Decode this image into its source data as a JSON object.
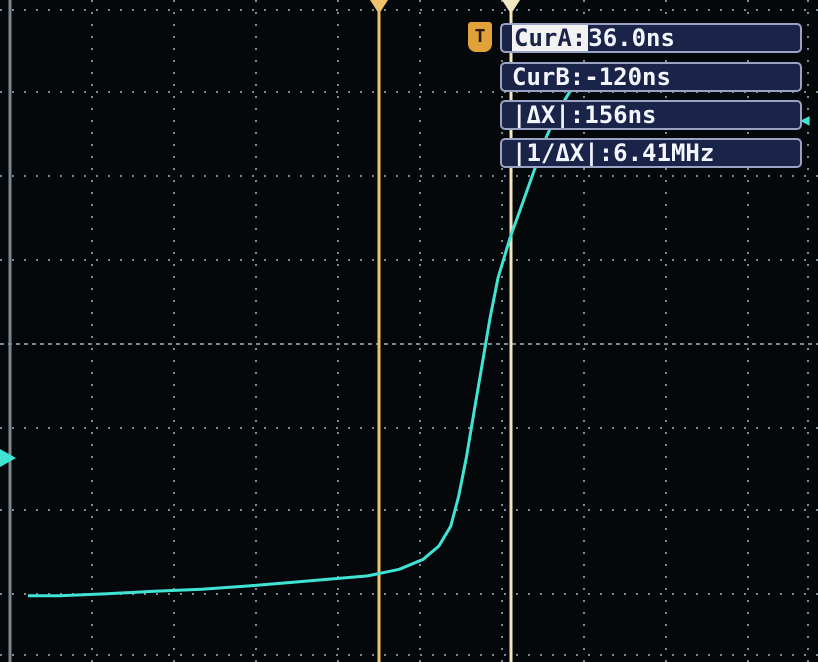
{
  "colors": {
    "screen_bg": "#05080a",
    "grid": "#7d8890",
    "trace": "#41e3d4",
    "cursor_a": "#f0c06a",
    "cursor_b": "#f2e6c0",
    "readout_bg": "#1a2348",
    "readout_border": "#9aa3c4",
    "readout_text": "#f4f6ff"
  },
  "markers": {
    "trigger_icon": "trigger-T-icon",
    "trigger_label": "T",
    "channel_marker_icon": "ch1-ground-arrow-icon",
    "trigger_level_icon": "trigger-level-arrow-icon",
    "trigger_level_glyph": "◀"
  },
  "readouts": {
    "cur_a_label": "CurA:",
    "cur_a_value": "36.0ns",
    "cur_b": "CurB:-120ns",
    "delta_x": "|ΔX|:156ns",
    "inv_delta_x": "|1/ΔX|:6.41MHz"
  },
  "trace": {
    "description_points": [
      [
        0,
        0.1
      ],
      [
        0.04,
        0.1
      ],
      [
        0.1,
        0.103
      ],
      [
        0.16,
        0.107
      ],
      [
        0.22,
        0.11
      ],
      [
        0.28,
        0.115
      ],
      [
        0.33,
        0.12
      ],
      [
        0.38,
        0.125
      ],
      [
        0.43,
        0.13
      ],
      [
        0.47,
        0.14
      ],
      [
        0.5,
        0.155
      ],
      [
        0.52,
        0.175
      ],
      [
        0.535,
        0.205
      ],
      [
        0.545,
        0.25
      ],
      [
        0.555,
        0.31
      ],
      [
        0.565,
        0.38
      ],
      [
        0.575,
        0.45
      ],
      [
        0.585,
        0.52
      ],
      [
        0.595,
        0.58
      ],
      [
        0.61,
        0.64
      ],
      [
        0.625,
        0.69
      ],
      [
        0.64,
        0.74
      ],
      [
        0.655,
        0.79
      ],
      [
        0.67,
        0.83
      ],
      [
        0.685,
        0.86
      ],
      [
        0.7,
        0.88
      ]
    ]
  }
}
